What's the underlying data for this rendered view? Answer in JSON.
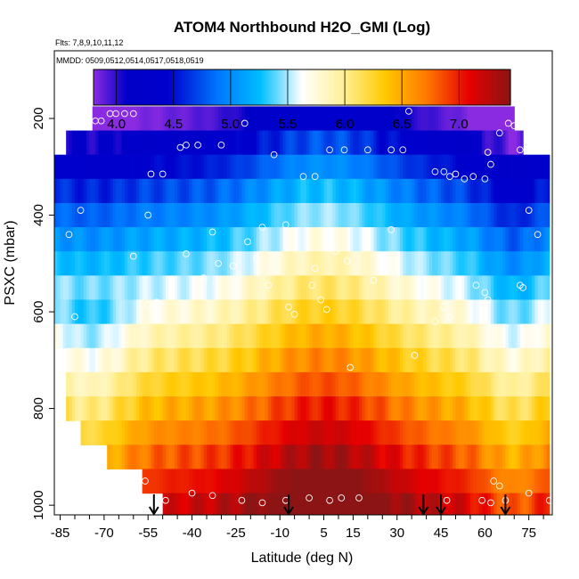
{
  "chart_data": {
    "type": "heatmap",
    "title": "ATOM4 Northbound H2O_GMI (Log)",
    "flights_label": "Flts: 7,8,9,10,11,12",
    "dates_label": "MMDD: 0509,0512,0514,0517,0518,0519",
    "xlabel": "Latitude (deg N)",
    "ylabel": "PSXC (mbar)",
    "xlim": [
      -87,
      83
    ],
    "ylim": [
      1020,
      60
    ],
    "x_ticks": [
      -85,
      -70,
      -55,
      -40,
      -25,
      -10,
      5,
      15,
      30,
      45,
      60,
      75
    ],
    "x_minor_ticks": [
      -80,
      -75,
      -65,
      -60,
      -50,
      -45,
      -35,
      -30,
      -20,
      -15,
      -5,
      0,
      10,
      20,
      25,
      35,
      40,
      50,
      55,
      65,
      70,
      80
    ],
    "y_ticks": [
      200,
      400,
      600,
      800,
      1000
    ],
    "colorbar": {
      "range": [
        3.8,
        7.45
      ],
      "ticks": [
        4.0,
        4.5,
        5.0,
        5.5,
        6.0,
        6.5,
        7.0
      ],
      "tick_labels": [
        "4.0",
        "4.5",
        "5.0",
        "5.5",
        "6.0",
        "6.5",
        "7.0"
      ]
    },
    "pressure_levels": [
      200,
      250,
      300,
      350,
      400,
      450,
      500,
      550,
      600,
      650,
      700,
      750,
      800,
      850,
      900,
      950,
      1000
    ],
    "observations": [
      {
        "lat": -84,
        "p": 215
      },
      {
        "lat": -80,
        "p": 215
      },
      {
        "lat": -73,
        "p": 205
      },
      {
        "lat": -71,
        "p": 205
      },
      {
        "lat": -68,
        "p": 190
      },
      {
        "lat": -66,
        "p": 190
      },
      {
        "lat": -63,
        "p": 190
      },
      {
        "lat": -60,
        "p": 190
      },
      {
        "lat": -44,
        "p": 260
      },
      {
        "lat": -42,
        "p": 255
      },
      {
        "lat": -38,
        "p": 255
      },
      {
        "lat": -30,
        "p": 255
      },
      {
        "lat": -22,
        "p": 210
      },
      {
        "lat": -12,
        "p": 275
      },
      {
        "lat": -2,
        "p": 320
      },
      {
        "lat": 2,
        "p": 320
      },
      {
        "lat": 7,
        "p": 265
      },
      {
        "lat": 12,
        "p": 265
      },
      {
        "lat": 20,
        "p": 265
      },
      {
        "lat": 28,
        "p": 265
      },
      {
        "lat": 32,
        "p": 265
      },
      {
        "lat": 34,
        "p": 185
      },
      {
        "lat": -54,
        "p": 315
      },
      {
        "lat": -50,
        "p": 315
      },
      {
        "lat": -78,
        "p": 390
      },
      {
        "lat": -55,
        "p": 400
      },
      {
        "lat": -33,
        "p": 435
      },
      {
        "lat": -21,
        "p": 455
      },
      {
        "lat": -16,
        "p": 425
      },
      {
        "lat": -8,
        "p": 420
      },
      {
        "lat": 28,
        "p": 430
      },
      {
        "lat": 43,
        "p": 310
      },
      {
        "lat": 46,
        "p": 310
      },
      {
        "lat": 48,
        "p": 320
      },
      {
        "lat": 50,
        "p": 315
      },
      {
        "lat": 53,
        "p": 325
      },
      {
        "lat": 56,
        "p": 320
      },
      {
        "lat": 60,
        "p": 325
      },
      {
        "lat": 62,
        "p": 295
      },
      {
        "lat": 65,
        "p": 230
      },
      {
        "lat": 68,
        "p": 210
      },
      {
        "lat": 70,
        "p": 215
      },
      {
        "lat": 72,
        "p": 265
      },
      {
        "lat": 77,
        "p": 260
      },
      {
        "lat": 80,
        "p": 265
      },
      {
        "lat": 61,
        "p": 270
      },
      {
        "lat": 75,
        "p": 390
      },
      {
        "lat": 78,
        "p": 440
      },
      {
        "lat": -82,
        "p": 440
      },
      {
        "lat": -60,
        "p": 485
      },
      {
        "lat": -42,
        "p": 480
      },
      {
        "lat": -36,
        "p": 530
      },
      {
        "lat": -31,
        "p": 500
      },
      {
        "lat": -26,
        "p": 505
      },
      {
        "lat": -18,
        "p": 490
      },
      {
        "lat": -14,
        "p": 545
      },
      {
        "lat": -7,
        "p": 590
      },
      {
        "lat": -5,
        "p": 605
      },
      {
        "lat": 1,
        "p": 545
      },
      {
        "lat": 2,
        "p": 510
      },
      {
        "lat": 4,
        "p": 575
      },
      {
        "lat": 6,
        "p": 595
      },
      {
        "lat": 9,
        "p": 475
      },
      {
        "lat": 13,
        "p": 495
      },
      {
        "lat": 22,
        "p": 535
      },
      {
        "lat": 14,
        "p": 715
      },
      {
        "lat": 36,
        "p": 690
      },
      {
        "lat": 43,
        "p": 620
      },
      {
        "lat": 46,
        "p": 590
      },
      {
        "lat": 48,
        "p": 610
      },
      {
        "lat": 57,
        "p": 545
      },
      {
        "lat": 60,
        "p": 560
      },
      {
        "lat": 61,
        "p": 575
      },
      {
        "lat": 72,
        "p": 545
      },
      {
        "lat": 73,
        "p": 550
      },
      {
        "lat": -55,
        "p": 585
      },
      {
        "lat": -52,
        "p": 580
      },
      {
        "lat": -80,
        "p": 610
      },
      {
        "lat": -56,
        "p": 950
      },
      {
        "lat": -53,
        "p": 995
      },
      {
        "lat": -49,
        "p": 990
      },
      {
        "lat": -40,
        "p": 975
      },
      {
        "lat": -33,
        "p": 980
      },
      {
        "lat": -23,
        "p": 990
      },
      {
        "lat": -16,
        "p": 995
      },
      {
        "lat": -8,
        "p": 990
      },
      {
        "lat": 0,
        "p": 985
      },
      {
        "lat": 7,
        "p": 990
      },
      {
        "lat": 11,
        "p": 985
      },
      {
        "lat": 17,
        "p": 985
      },
      {
        "lat": 47,
        "p": 990
      },
      {
        "lat": 59,
        "p": 990
      },
      {
        "lat": 62,
        "p": 995
      },
      {
        "lat": 63,
        "p": 950
      },
      {
        "lat": 65,
        "p": 960
      },
      {
        "lat": 67,
        "p": 990
      },
      {
        "lat": 75,
        "p": 975
      },
      {
        "lat": 82,
        "p": 990
      }
    ],
    "arrows_lat": [
      -53,
      -7,
      39,
      45,
      67
    ]
  }
}
